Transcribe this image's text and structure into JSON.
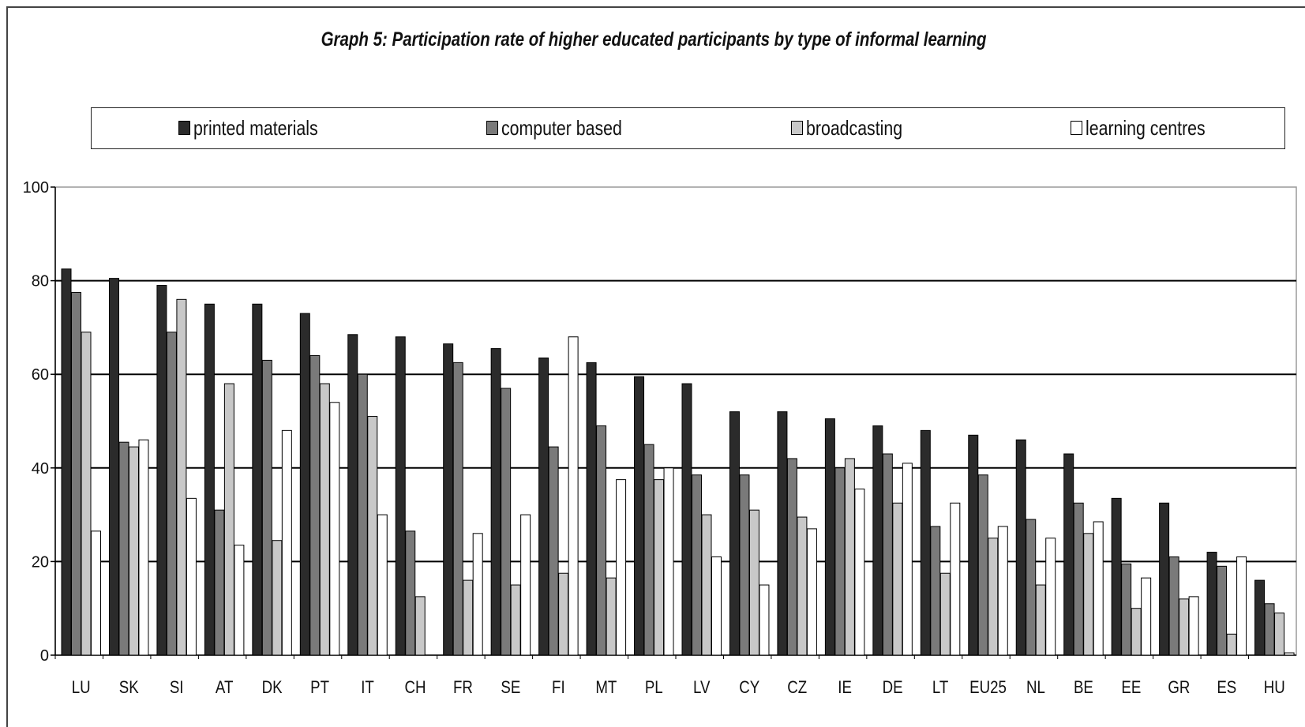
{
  "chart_data": {
    "type": "bar",
    "title": "Graph 5: Participation rate of higher educated participants by type of informal learning",
    "xlabel": "",
    "ylabel": "",
    "ylim": [
      0,
      100
    ],
    "yticks": [
      0,
      20,
      40,
      60,
      80,
      100
    ],
    "grid": true,
    "legend_position": "top",
    "categories": [
      "LU",
      "SK",
      "SI",
      "AT",
      "DK",
      "PT",
      "IT",
      "CH",
      "FR",
      "SE",
      "FI",
      "MT",
      "PL",
      "LV",
      "CY",
      "CZ",
      "IE",
      "DE",
      "LT",
      "EU25",
      "NL",
      "BE",
      "EE",
      "GR",
      "ES",
      "HU"
    ],
    "series": [
      {
        "name": "printed materials",
        "color": "#2b2b2b",
        "values": [
          82.5,
          80.5,
          79,
          75,
          75,
          73,
          68.5,
          68,
          66.5,
          65.5,
          63.5,
          62.5,
          59.5,
          58,
          52,
          52,
          50.5,
          49,
          48,
          47,
          46,
          43,
          33.5,
          32.5,
          22,
          16
        ]
      },
      {
        "name": "computer based",
        "color": "#7a7a7a",
        "values": [
          77.5,
          45.5,
          69,
          31,
          63,
          64,
          60,
          26.5,
          62.5,
          57,
          44.5,
          49,
          45,
          38.5,
          38.5,
          42,
          40,
          43,
          27.5,
          38.5,
          29,
          32.5,
          19.5,
          21,
          19,
          11
        ]
      },
      {
        "name": "broadcasting",
        "color": "#c8c8c8",
        "values": [
          69,
          44.5,
          76,
          58,
          24.5,
          58,
          51,
          12.5,
          16,
          15,
          17.5,
          16.5,
          37.5,
          30,
          31,
          29.5,
          42,
          32.5,
          17.5,
          25,
          15,
          26,
          10,
          12,
          4.5,
          9
        ]
      },
      {
        "name": "learning centres",
        "color": "#ffffff",
        "values": [
          26.5,
          46,
          33.5,
          23.5,
          48,
          54,
          30,
          0,
          26,
          30,
          68,
          37.5,
          40,
          21,
          15,
          27,
          35.5,
          41,
          32.5,
          27.5,
          25,
          28.5,
          16.5,
          12.5,
          21,
          0.5
        ]
      }
    ]
  }
}
